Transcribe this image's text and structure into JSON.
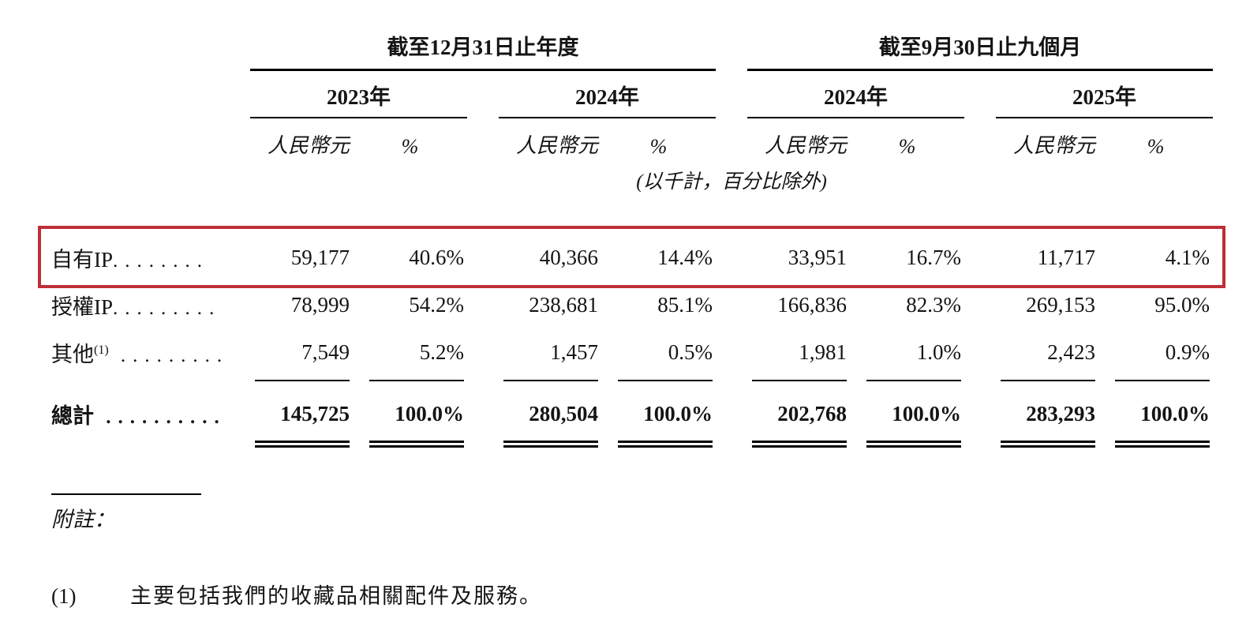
{
  "table": {
    "groups": [
      {
        "title": "截至12月31日止年度",
        "years": [
          "2023年",
          "2024年"
        ]
      },
      {
        "title": "截至9月30日止九個月",
        "years": [
          "2024年",
          "2025年"
        ]
      }
    ],
    "headers": {
      "currency": "人民幣元",
      "percent": "%"
    },
    "unit_note": "(以千計，百分比除外)",
    "rows": [
      {
        "label": "自有IP",
        "dots": "........",
        "highlighted": true,
        "values": [
          "59,177",
          "40.6%",
          "40,366",
          "14.4%",
          "33,951",
          "16.7%",
          "11,717",
          "4.1%"
        ]
      },
      {
        "label": "授權IP",
        "dots": ".........",
        "values": [
          "78,999",
          "54.2%",
          "238,681",
          "85.1%",
          "166,836",
          "82.3%",
          "269,153",
          "95.0%"
        ]
      },
      {
        "label": "其他",
        "sup": "(1)",
        "dots": " .........",
        "values": [
          "7,549",
          "5.2%",
          "1,457",
          "0.5%",
          "1,981",
          "1.0%",
          "2,423",
          "0.9%"
        ]
      }
    ],
    "total": {
      "label": "總計",
      "dots": " ..........",
      "values": [
        "145,725",
        "100.0%",
        "280,504",
        "100.0%",
        "202,768",
        "100.0%",
        "283,293",
        "100.0%"
      ]
    }
  },
  "footnotes": {
    "heading": "附註：",
    "items": [
      {
        "marker": "(1)",
        "text": "主要包括我們的收藏品相關配件及服務。"
      }
    ]
  },
  "highlight_color": "#bf2f38"
}
